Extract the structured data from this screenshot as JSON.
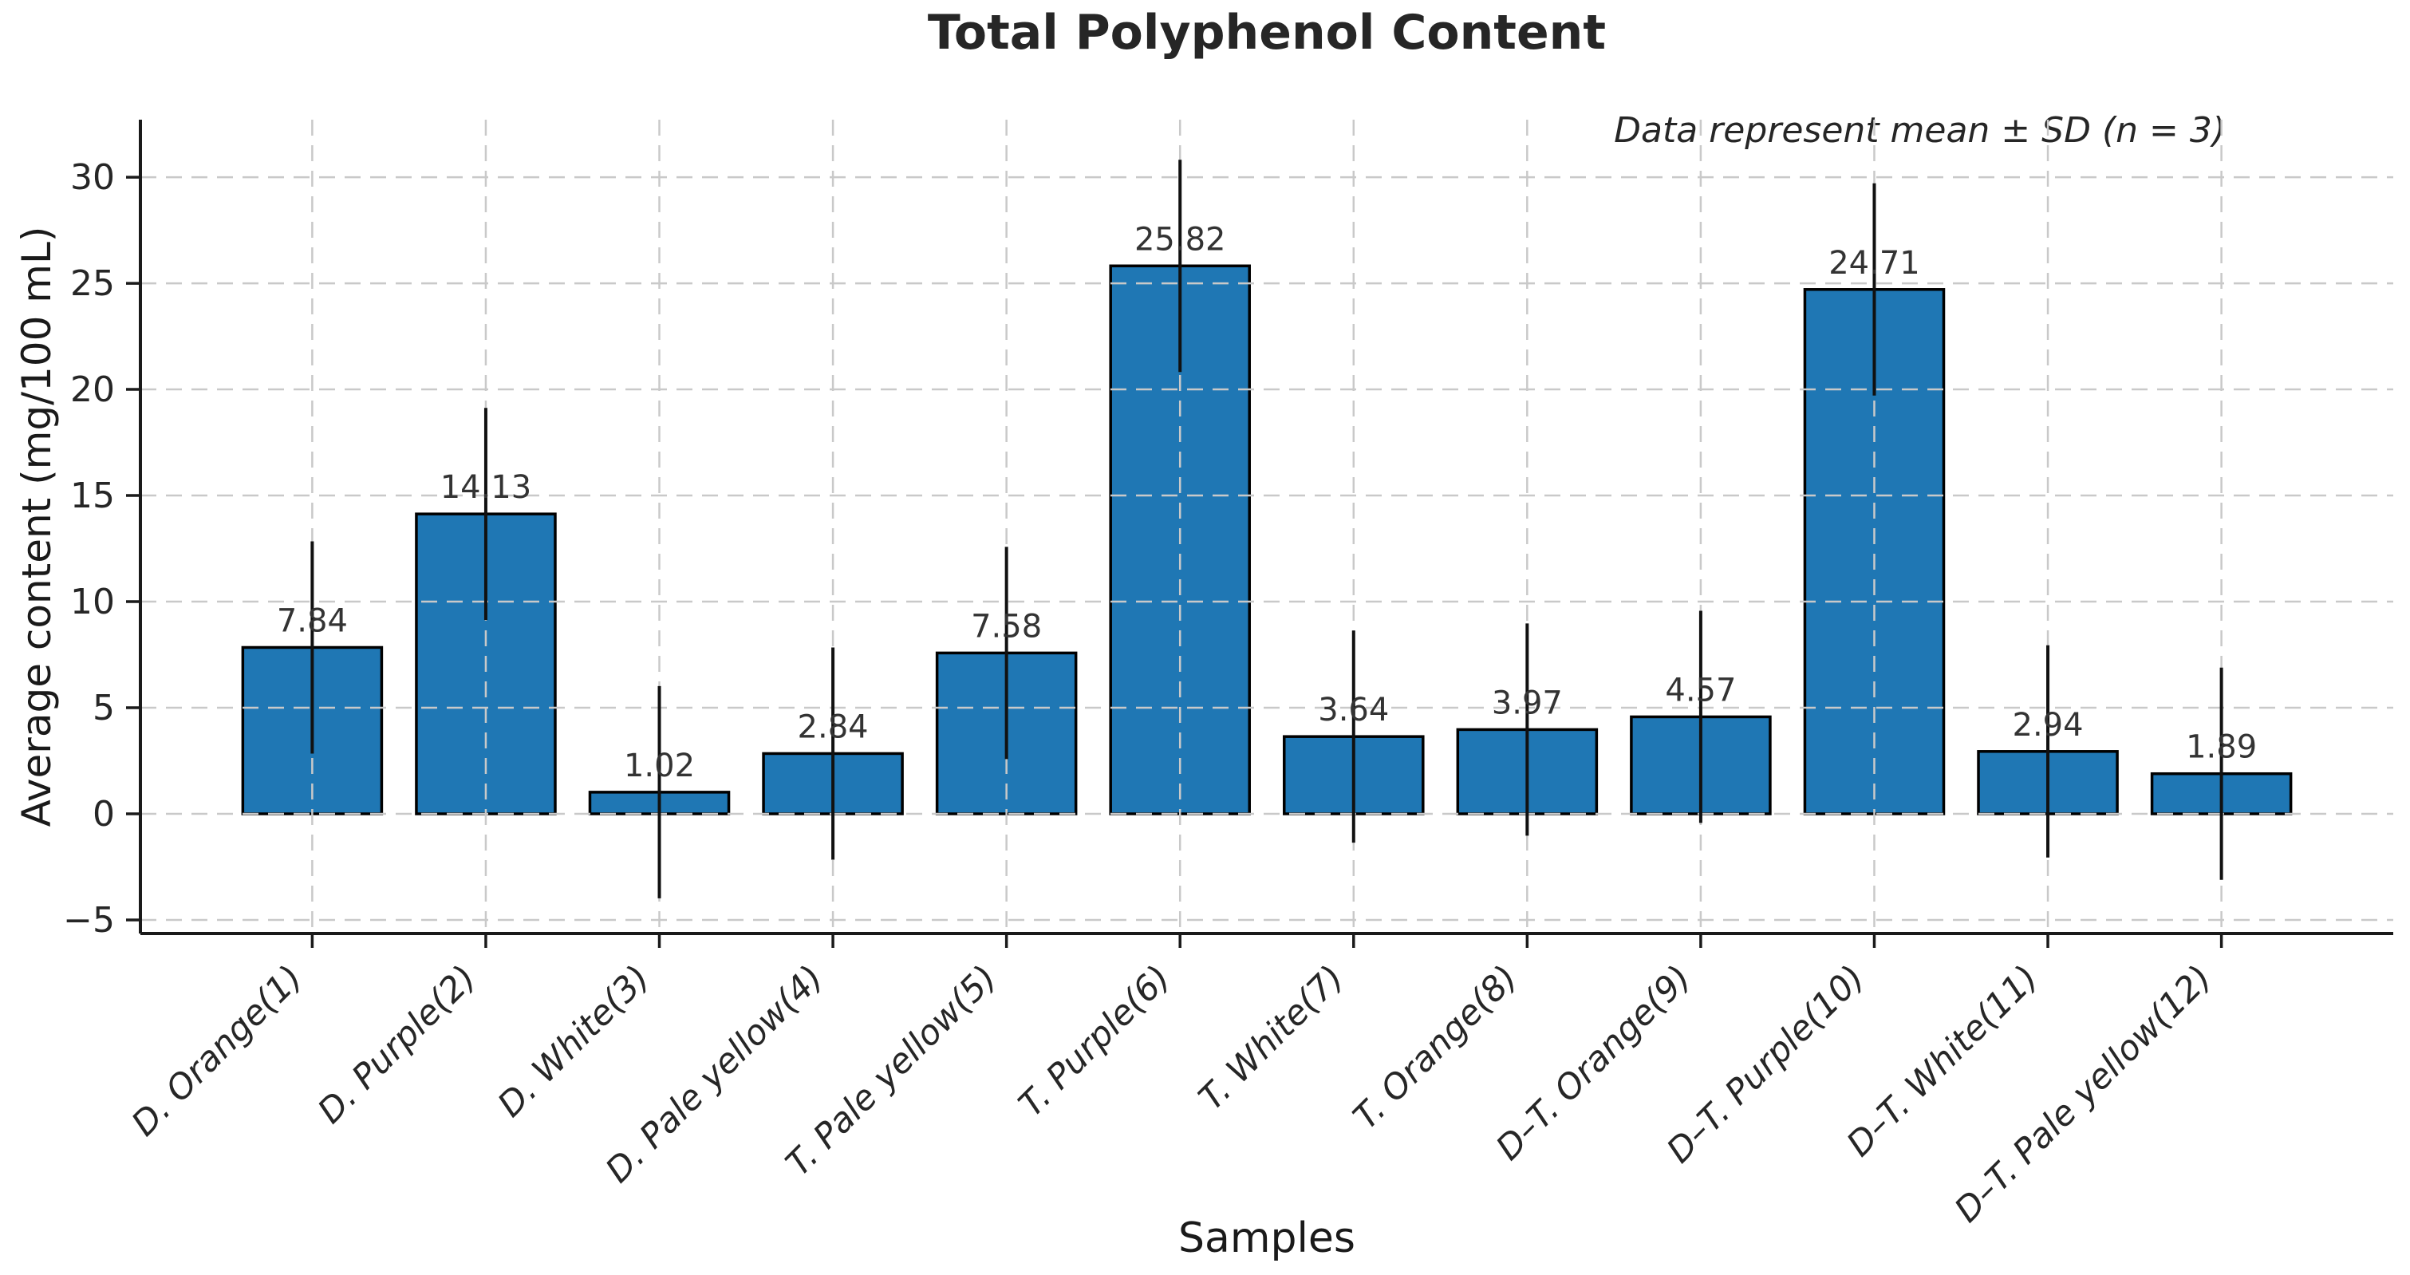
{
  "chart_data": {
    "type": "bar",
    "title": "Total Polyphenol Content",
    "annotation": "Data represent mean ± SD (n = 3)",
    "xlabel": "Samples",
    "ylabel": "Average content (mg/100 mL)",
    "categories": [
      "D. Orange(1)",
      "D. Purple(2)",
      "D. White(3)",
      "D. Pale yellow(4)",
      "T. Pale yellow(5)",
      "T. Purple(6)",
      "T. White(7)",
      "T. Orange(8)",
      "D–T. Orange(9)",
      "D–T. Purple(10)",
      "D–T. White(11)",
      "D–T. Pale yellow(12)"
    ],
    "values": [
      7.84,
      14.13,
      1.02,
      2.84,
      7.58,
      25.82,
      3.64,
      3.97,
      4.57,
      24.71,
      2.94,
      1.89
    ],
    "value_labels": [
      "7.84",
      "14.13",
      "1.02",
      "2.84",
      "7.58",
      "25.82",
      "3.64",
      "3.97",
      "4.57",
      "24.71",
      "2.94",
      "1.89"
    ],
    "errors_sd": [
      5,
      5,
      5,
      5,
      5,
      5,
      5,
      5,
      5,
      5,
      5,
      5
    ],
    "n_replicates": 3,
    "ytick_values": [
      -5,
      0,
      5,
      10,
      15,
      20,
      25,
      30
    ],
    "ytick_labels": [
      "−5",
      "0",
      "5",
      "10",
      "15",
      "20",
      "25",
      "30"
    ],
    "ylim": [
      -5.64,
      32.71
    ],
    "xlim": [
      -0.99,
      11.99
    ],
    "bar_width": 0.8,
    "grid": true,
    "grid_style": "dashed",
    "legend": "none",
    "colors": {
      "bar_fill": "#1f77b4",
      "bar_edge": "#000000",
      "error_bar": "#111111",
      "grid": "#c9c9c9",
      "spine": "#1a1a1a",
      "value_text": "#333333",
      "tick_text": "#262626"
    }
  }
}
